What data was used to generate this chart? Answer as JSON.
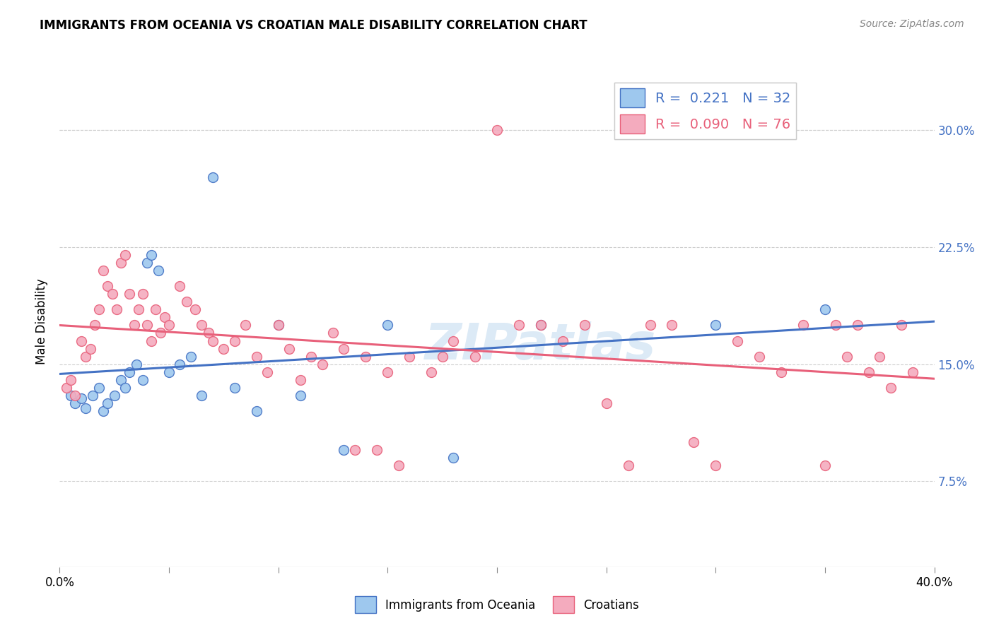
{
  "title": "IMMIGRANTS FROM OCEANIA VS CROATIAN MALE DISABILITY CORRELATION CHART",
  "source": "Source: ZipAtlas.com",
  "ylabel": "Male Disability",
  "yticks": [
    "7.5%",
    "15.0%",
    "22.5%",
    "30.0%"
  ],
  "ytick_vals": [
    0.075,
    0.15,
    0.225,
    0.3
  ],
  "xmin": 0.0,
  "xmax": 0.4,
  "ymin": 0.02,
  "ymax": 0.335,
  "r_oceania": 0.221,
  "n_oceania": 32,
  "r_croatian": 0.09,
  "n_croatian": 76,
  "color_oceania": "#9EC8EE",
  "color_oceania_line": "#4472C4",
  "color_croatian": "#F4ABBE",
  "color_croatian_line": "#E8607A",
  "watermark": "ZIPatlas",
  "oceania_x": [
    0.005,
    0.007,
    0.01,
    0.012,
    0.015,
    0.018,
    0.02,
    0.022,
    0.025,
    0.028,
    0.03,
    0.032,
    0.035,
    0.038,
    0.04,
    0.042,
    0.045,
    0.05,
    0.055,
    0.06,
    0.065,
    0.07,
    0.08,
    0.09,
    0.1,
    0.11,
    0.13,
    0.15,
    0.18,
    0.22,
    0.3,
    0.35
  ],
  "oceania_y": [
    0.13,
    0.125,
    0.128,
    0.122,
    0.13,
    0.135,
    0.12,
    0.125,
    0.13,
    0.14,
    0.135,
    0.145,
    0.15,
    0.14,
    0.215,
    0.22,
    0.21,
    0.145,
    0.15,
    0.155,
    0.13,
    0.27,
    0.135,
    0.12,
    0.175,
    0.13,
    0.095,
    0.175,
    0.09,
    0.175,
    0.175,
    0.185
  ],
  "croatian_x": [
    0.003,
    0.005,
    0.007,
    0.01,
    0.012,
    0.014,
    0.016,
    0.018,
    0.02,
    0.022,
    0.024,
    0.026,
    0.028,
    0.03,
    0.032,
    0.034,
    0.036,
    0.038,
    0.04,
    0.042,
    0.044,
    0.046,
    0.048,
    0.05,
    0.055,
    0.058,
    0.062,
    0.065,
    0.068,
    0.07,
    0.075,
    0.08,
    0.085,
    0.09,
    0.095,
    0.1,
    0.105,
    0.11,
    0.115,
    0.12,
    0.125,
    0.13,
    0.135,
    0.14,
    0.145,
    0.15,
    0.155,
    0.16,
    0.17,
    0.175,
    0.18,
    0.19,
    0.2,
    0.21,
    0.22,
    0.23,
    0.24,
    0.25,
    0.26,
    0.27,
    0.28,
    0.29,
    0.3,
    0.31,
    0.32,
    0.33,
    0.34,
    0.35,
    0.355,
    0.36,
    0.365,
    0.37,
    0.375,
    0.38,
    0.385,
    0.39
  ],
  "croatian_y": [
    0.135,
    0.14,
    0.13,
    0.165,
    0.155,
    0.16,
    0.175,
    0.185,
    0.21,
    0.2,
    0.195,
    0.185,
    0.215,
    0.22,
    0.195,
    0.175,
    0.185,
    0.195,
    0.175,
    0.165,
    0.185,
    0.17,
    0.18,
    0.175,
    0.2,
    0.19,
    0.185,
    0.175,
    0.17,
    0.165,
    0.16,
    0.165,
    0.175,
    0.155,
    0.145,
    0.175,
    0.16,
    0.14,
    0.155,
    0.15,
    0.17,
    0.16,
    0.095,
    0.155,
    0.095,
    0.145,
    0.085,
    0.155,
    0.145,
    0.155,
    0.165,
    0.155,
    0.3,
    0.175,
    0.175,
    0.165,
    0.175,
    0.125,
    0.085,
    0.175,
    0.175,
    0.1,
    0.085,
    0.165,
    0.155,
    0.145,
    0.175,
    0.085,
    0.175,
    0.155,
    0.175,
    0.145,
    0.155,
    0.135,
    0.175,
    0.145
  ]
}
